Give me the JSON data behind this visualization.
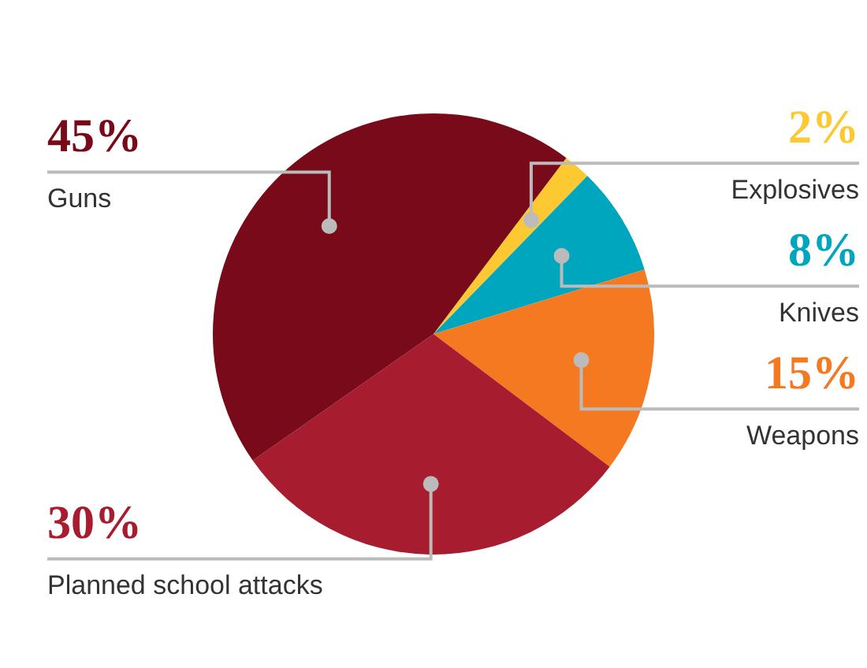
{
  "chart_data": {
    "type": "pie",
    "categories": [
      "Explosives",
      "Knives",
      "Weapons",
      "Planned school attacks",
      "Guns"
    ],
    "values": [
      2,
      8,
      15,
      30,
      45
    ],
    "colors": [
      "#fcc932",
      "#00a6bd",
      "#f47920",
      "#a71c2e",
      "#780a19"
    ],
    "value_labels": [
      "2%",
      "8%",
      "15%",
      "30%",
      "45%"
    ]
  }
}
